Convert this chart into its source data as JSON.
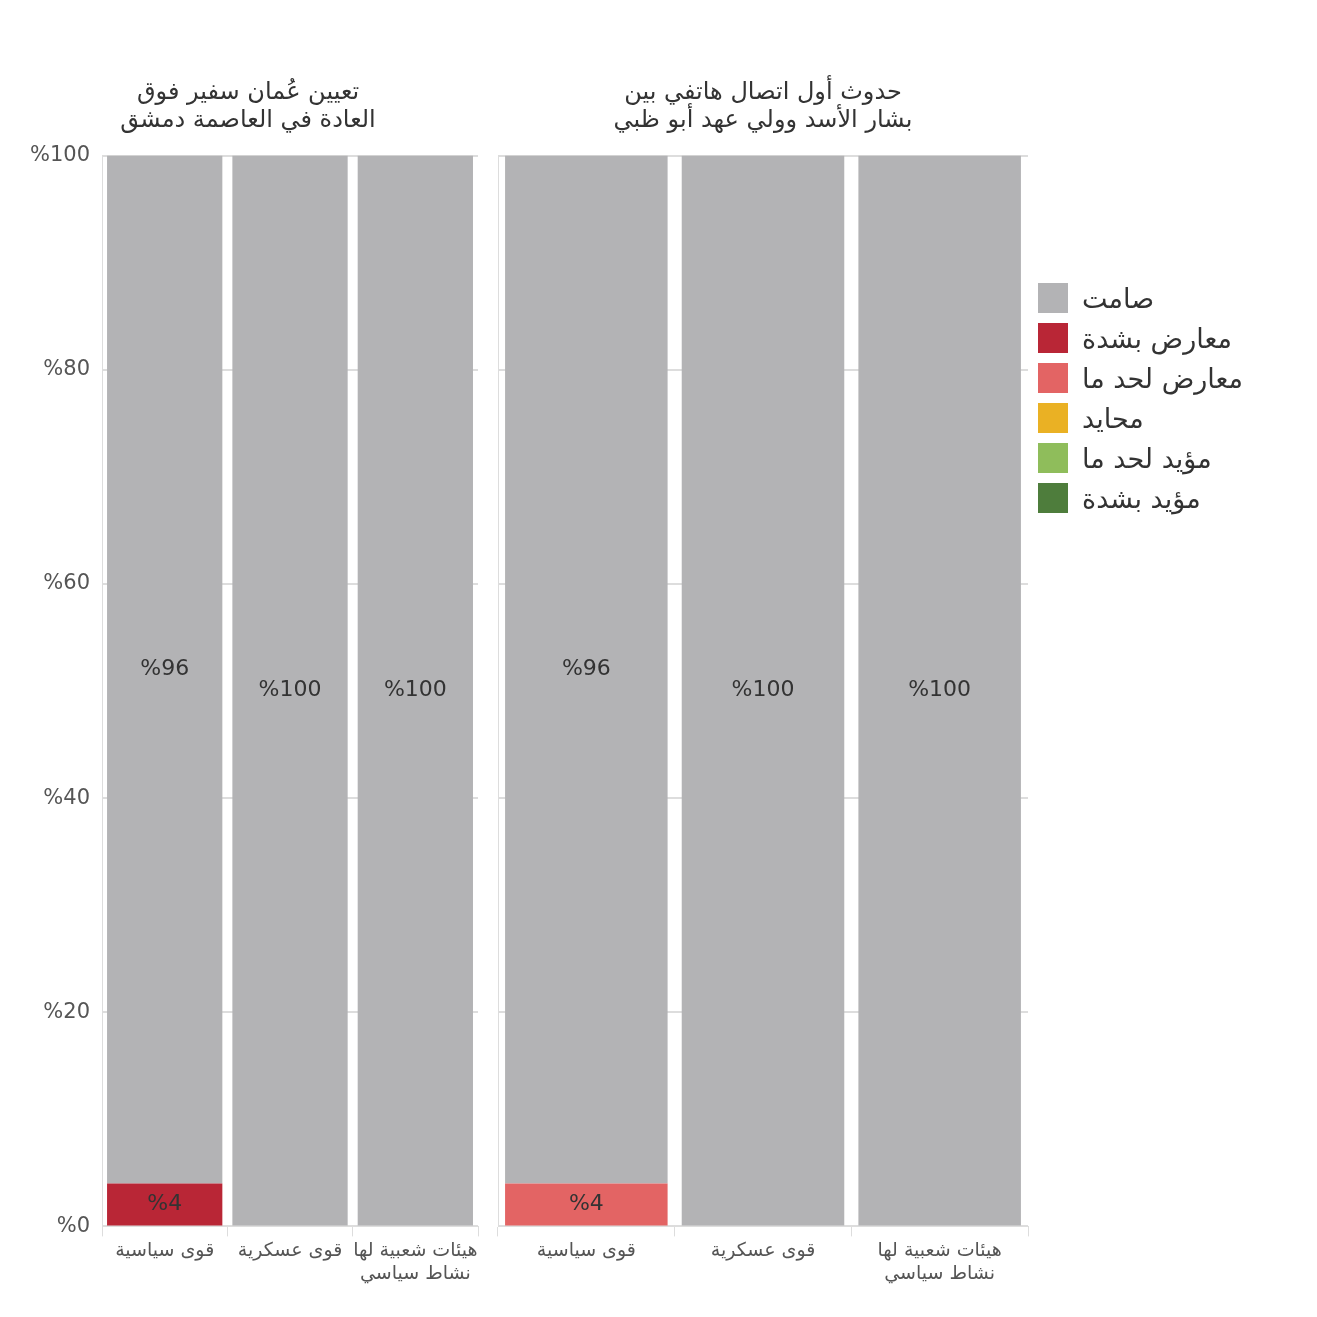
{
  "chart_data": [
    {
      "type": "bar",
      "stacked": true,
      "title": "تعيين عُمان سفير فوق\nالعادة في العاصمة دمشق",
      "categories": [
        "قوى سياسية",
        "قوى عسكرية",
        "هيئات شعبية لها\nنشاط سياسي"
      ],
      "ylim": [
        0,
        100
      ],
      "yticks": [
        {
          "value": 0,
          "label": "%0"
        },
        {
          "value": 20,
          "label": "%20"
        },
        {
          "value": 40,
          "label": "%40"
        },
        {
          "value": 60,
          "label": "%60"
        },
        {
          "value": 80,
          "label": "%80"
        },
        {
          "value": 100,
          "label": "%100"
        }
      ],
      "grid": "y",
      "series": [
        {
          "color": "#4e7d3c",
          "values": [
            0,
            0,
            0
          ]
        },
        {
          "color": "#8fbd5b",
          "values": [
            0,
            0,
            0
          ]
        },
        {
          "color": "#eab124",
          "values": [
            0,
            0,
            0
          ]
        },
        {
          "color": "#e36464",
          "values": [
            0,
            0,
            0
          ]
        },
        {
          "color": "#b92636",
          "values": [
            4,
            0,
            0
          ],
          "value_labels": [
            "%4",
            null,
            null
          ]
        },
        {
          "color": "#b3b3b5",
          "values": [
            96,
            100,
            100
          ],
          "value_labels": [
            "%96",
            "%100",
            "%100"
          ]
        }
      ]
    },
    {
      "type": "bar",
      "stacked": true,
      "title": "حدوث أول اتصال هاتفي بين\nبشار الأسد وولي عهد أبو ظبي",
      "categories": [
        "قوى سياسية",
        "قوى عسكرية",
        "هيئات شعبية لها\nنشاط سياسي"
      ],
      "ylim": [
        0,
        100
      ],
      "yticks": [
        0,
        20,
        40,
        60,
        80,
        100
      ],
      "tick_labels": "x",
      "grid": "y",
      "legend": "top right",
      "series": [
        {
          "name": "مؤيد بشدة",
          "color": "#4e7d3c",
          "values": [
            0,
            0,
            0
          ]
        },
        {
          "name": "مؤيد لحد ما",
          "color": "#8fbd5b",
          "values": [
            0,
            0,
            0
          ]
        },
        {
          "name": "محايد",
          "color": "#eab124",
          "values": [
            0,
            0,
            0
          ]
        },
        {
          "name": "معارض لحد ما",
          "color": "#e36464",
          "values": [
            4,
            0,
            0
          ],
          "value_labels": [
            "%4",
            null,
            null
          ]
        },
        {
          "name": "معارض بشدة",
          "color": "#b92636",
          "values": [
            0,
            0,
            0
          ]
        },
        {
          "name": "صامت",
          "color": "#b3b3b5",
          "values": [
            96,
            100,
            100
          ],
          "value_labels": [
            "%96",
            "%100",
            "%100"
          ]
        }
      ]
    }
  ]
}
